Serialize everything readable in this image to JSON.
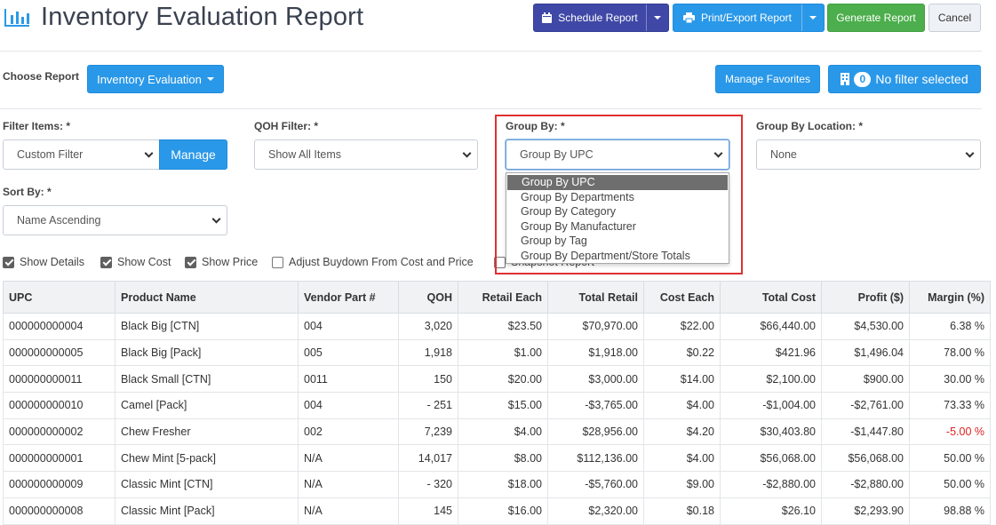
{
  "header": {
    "title": "Inventory Evaluation Report",
    "schedule_label": "Schedule Report",
    "print_label": "Print/Export Report",
    "generate_label": "Generate Report",
    "cancel_label": "Cancel"
  },
  "toolbar": {
    "choose_report_label": "Choose Report",
    "report_type": "Inventory Evaluation",
    "manage_favorites_label": "Manage Favorites",
    "filter_count": "0",
    "filter_status": "No filter selected"
  },
  "filters": {
    "filter_items_label": "Filter Items: *",
    "filter_items_value": "Custom Filter",
    "manage_label": "Manage",
    "qoh_label": "QOH Filter: *",
    "qoh_value": "Show All Items",
    "group_by_label": "Group By: *",
    "group_by_value": "Group By UPC",
    "group_by_location_label": "Group By Location: *",
    "group_by_location_value": "None",
    "sort_by_label": "Sort By: *",
    "sort_by_value": "Name Ascending"
  },
  "group_by_options": [
    "Group By UPC",
    "Group By Departments",
    "Group By Category",
    "Group By Manufacturer",
    "Group by Tag",
    "Group By Department/Store Totals"
  ],
  "options": [
    {
      "label": "Show Details",
      "checked": true
    },
    {
      "label": "Show Cost",
      "checked": true
    },
    {
      "label": "Show Price",
      "checked": true
    },
    {
      "label": "Adjust Buydown From Cost and Price",
      "checked": false
    },
    {
      "label": "Snapshot Report",
      "checked": false
    }
  ],
  "table": {
    "columns": [
      "UPC",
      "Product Name",
      "Vendor Part #",
      "QOH",
      "Retail Each",
      "Total Retail",
      "Cost Each",
      "Total Cost",
      "Profit ($)",
      "Margin (%)"
    ],
    "rows": [
      [
        "000000000004",
        "Black Big [CTN]",
        "004",
        "3,020",
        "$23.50",
        "$70,970.00",
        "$22.00",
        "$66,440.00",
        "$4,530.00",
        "6.38 %"
      ],
      [
        "000000000005",
        "Black Big [Pack]",
        "005",
        "1,918",
        "$1.00",
        "$1,918.00",
        "$0.22",
        "$421.96",
        "$1,496.04",
        "78.00 %"
      ],
      [
        "000000000011",
        "Black Small [CTN]",
        "0011",
        "150",
        "$20.00",
        "$3,000.00",
        "$14.00",
        "$2,100.00",
        "$900.00",
        "30.00 %"
      ],
      [
        "000000000010",
        "Camel [Pack]",
        "004",
        "- 251",
        "$15.00",
        "-$3,765.00",
        "$4.00",
        "-$1,004.00",
        "-$2,761.00",
        "73.33 %"
      ],
      [
        "000000000002",
        "Chew Fresher",
        "002",
        "7,239",
        "$4.00",
        "$28,956.00",
        "$4.20",
        "$30,403.80",
        "-$1,447.80",
        "-5.00 %"
      ],
      [
        "000000000001",
        "Chew Mint [5-pack]",
        "N/A",
        "14,017",
        "$8.00",
        "$112,136.00",
        "$4.00",
        "$56,068.00",
        "$56,068.00",
        "50.00 %"
      ],
      [
        "000000000009",
        "Classic Mint [CTN]",
        "N/A",
        "- 320",
        "$18.00",
        "-$5,760.00",
        "$9.00",
        "-$2,880.00",
        "-$2,880.00",
        "50.00 %"
      ],
      [
        "000000000008",
        "Classic Mint [Pack]",
        "N/A",
        "145",
        "$16.00",
        "$2,320.00",
        "$0.18",
        "$26.10",
        "$2,293.90",
        "98.88 %"
      ]
    ]
  },
  "colors": {
    "accent_blue": "#2a98e8",
    "purple": "#3f48a6",
    "green": "#4cae4c",
    "negative_margin": "#e02020",
    "highlight_box": "#e03030"
  }
}
